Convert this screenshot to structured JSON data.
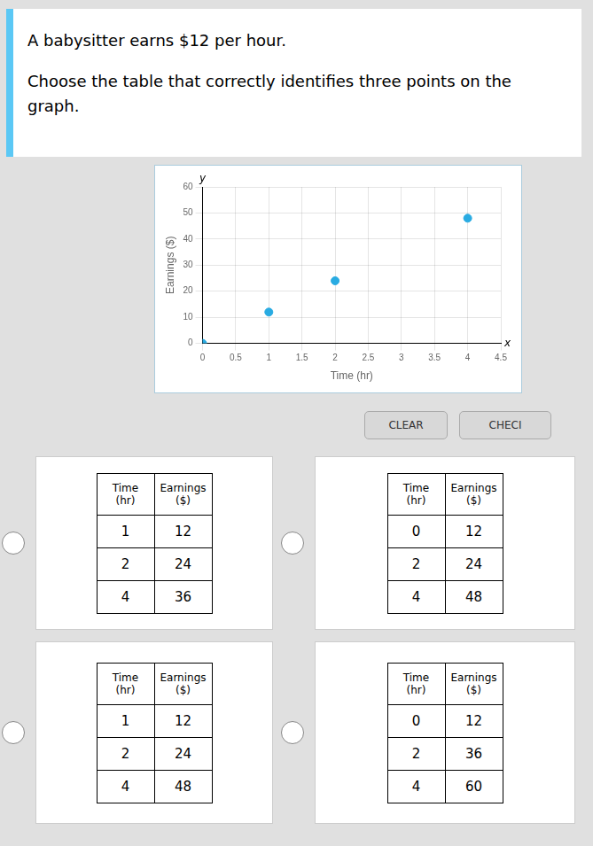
{
  "chart_data": {
    "type": "scatter",
    "title": "A babysitter earns $12 per hour.",
    "subtitle": "Choose the table that correctly identifies three points on the graph.",
    "x": [
      0,
      1,
      2,
      4
    ],
    "values": [
      0,
      12,
      24,
      48
    ],
    "color": "#29abe2",
    "xlabel": "Time (hr)",
    "ylabel": "Earnings ($)",
    "xlim": [
      0,
      4.5
    ],
    "xticks": [
      0,
      0.5,
      1,
      1.5,
      2,
      2.5,
      3,
      3.5,
      4,
      4.5
    ],
    "ylim": [
      0,
      60
    ],
    "yticks": [
      0,
      10,
      20,
      30,
      40,
      50,
      60
    ],
    "grid": true,
    "annotations": [
      "x",
      "y",
      "CLEAR",
      "CHECI"
    ],
    "tables": [
      {
        "columns": [
          "Time\n(hr)",
          "Earnings\n($)"
        ],
        "rows": [
          [
            "1",
            "12"
          ],
          [
            "2",
            "24"
          ],
          [
            "4",
            "36"
          ]
        ]
      },
      {
        "columns": [
          "Time\n(hr)",
          "Earnings\n($)"
        ],
        "rows": [
          [
            "0",
            "12"
          ],
          [
            "2",
            "24"
          ],
          [
            "4",
            "48"
          ]
        ]
      },
      {
        "columns": [
          "Time\n(hr)",
          "Earnings\n($)"
        ],
        "rows": [
          [
            "1",
            "12"
          ],
          [
            "2",
            "24"
          ],
          [
            "4",
            "48"
          ]
        ]
      },
      {
        "columns": [
          "Time\n(hr)",
          "Earnings\n($)"
        ],
        "rows": [
          [
            "0",
            "12"
          ],
          [
            "2",
            "36"
          ],
          [
            "4",
            "60"
          ]
        ]
      }
    ]
  }
}
